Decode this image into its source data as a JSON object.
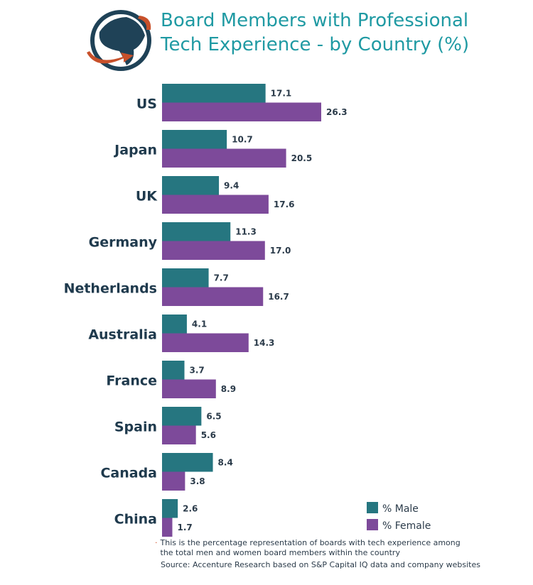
{
  "chart_data": {
    "type": "bar",
    "orientation": "horizontal",
    "title": "Board Members with Professional Tech Experience - by Country (%)",
    "categories": [
      "US",
      "Japan",
      "UK",
      "Germany",
      "Netherlands",
      "Australia",
      "France",
      "Spain",
      "Canada",
      "China"
    ],
    "series": [
      {
        "name": "% Male",
        "color": "#267680",
        "values": [
          17.1,
          10.7,
          9.4,
          11.3,
          7.7,
          4.1,
          3.7,
          6.5,
          8.4,
          2.6
        ]
      },
      {
        "name": "% Female",
        "color": "#7d4a9a",
        "values": [
          26.3,
          20.5,
          17.6,
          17.0,
          16.7,
          14.3,
          8.9,
          5.6,
          3.8,
          1.7
        ]
      }
    ],
    "value_labels": [
      [
        "17.1",
        "10.7",
        "9.4",
        "11.3",
        "7.7",
        "4.1",
        "3.7",
        "6.5",
        "8.4",
        "2.6"
      ],
      [
        "26.3",
        "20.5",
        "17.6",
        "17.0",
        "16.7",
        "14.3",
        "8.9",
        "5.6",
        "3.8",
        "1.7"
      ]
    ],
    "legend": "bottom-right",
    "grid": false,
    "xlim": [
      0,
      26.3
    ]
  },
  "title_line1": "Board Members with Professional",
  "title_line2": "Tech Experience - by Country (%)",
  "footnote_marker": "·",
  "footnote": "This is the percentage representation of boards with tech experience among the total men and women board members within the country",
  "source": "Source: Accenture Research based on S&P Capital IQ data and company websites",
  "colors": {
    "title": "#1f9aa3",
    "globe": "#1f4257",
    "arrow": "#c8502a"
  }
}
